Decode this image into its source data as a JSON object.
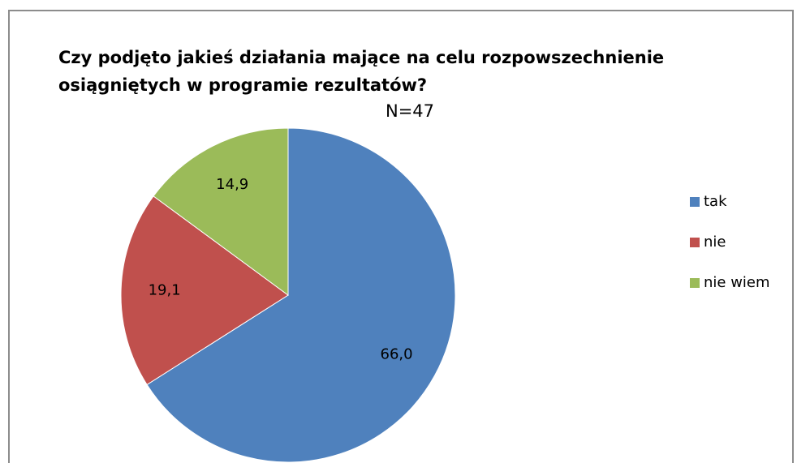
{
  "chart_data": {
    "type": "pie",
    "title": "Czy podjęto jakieś działania mające na celu rozpowszechnienie osiągniętych w programie rezultatów?",
    "subtitle": "N=47",
    "categories": [
      "tak",
      "nie",
      "nie wiem"
    ],
    "values": [
      66.0,
      19.1,
      14.9
    ],
    "value_labels": [
      "66,0",
      "19,1",
      "14,9"
    ],
    "colors": [
      "#4f81bd",
      "#c0504d",
      "#9bbb59"
    ],
    "legend": "right"
  }
}
